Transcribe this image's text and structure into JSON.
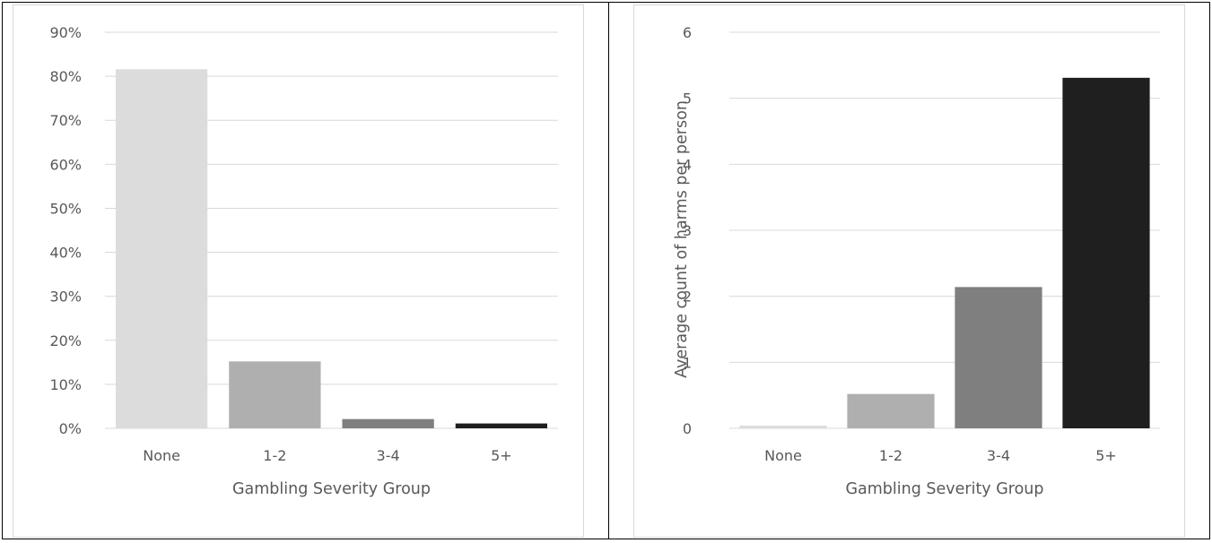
{
  "colors": {
    "gridline": "#d9d9d9",
    "axis_text": "#595959",
    "frame": "#000000",
    "bar_none": "#dcdcdc",
    "bar_1_2": "#afafaf",
    "bar_3_4": "#7f7f7f",
    "bar_5_plus": "#1f1f1f"
  },
  "chart_data": [
    {
      "type": "bar",
      "title": "",
      "xlabel": "Gambling Severity Group",
      "ylabel": "",
      "categories": [
        "None",
        "1-2",
        "3-4",
        "5+"
      ],
      "values": [
        81.6,
        15.2,
        2.1,
        1.1
      ],
      "value_format": "percent",
      "ylim": [
        0,
        90
      ],
      "yticks": [
        0,
        10,
        20,
        30,
        40,
        50,
        60,
        70,
        80,
        90
      ],
      "ytick_labels": [
        "0%",
        "10%",
        "20%",
        "30%",
        "40%",
        "50%",
        "60%",
        "70%",
        "80%",
        "90%"
      ],
      "grid": true,
      "legend": "none"
    },
    {
      "type": "bar",
      "title": "",
      "xlabel": "Gambling Severity Group",
      "ylabel": "Average count of harms per person",
      "categories": [
        "None",
        "1-2",
        "3-4",
        "5+"
      ],
      "values": [
        0.04,
        0.52,
        2.14,
        5.31
      ],
      "ylim": [
        0,
        6
      ],
      "yticks": [
        0,
        1,
        2,
        3,
        4,
        5,
        6
      ],
      "ytick_labels": [
        "0",
        "1",
        "2",
        "3",
        "4",
        "5",
        "6"
      ],
      "grid": true,
      "legend": "none"
    }
  ]
}
